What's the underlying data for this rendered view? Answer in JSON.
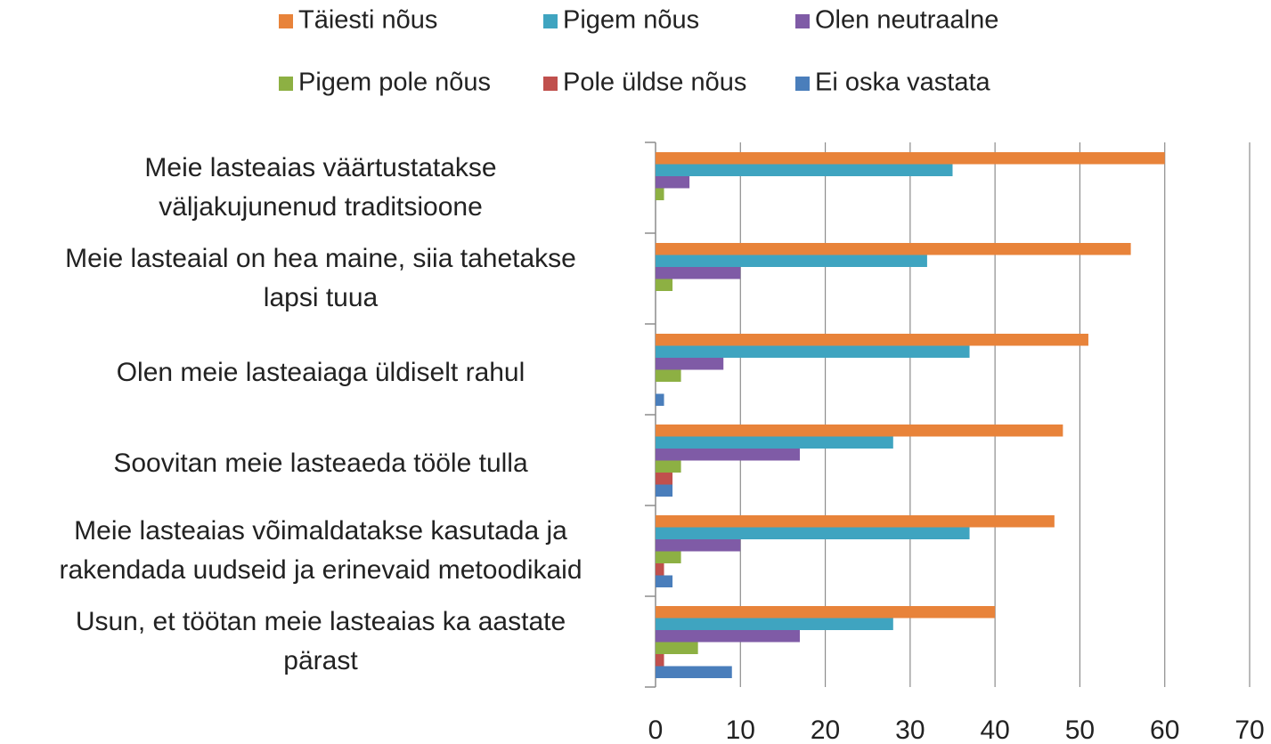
{
  "chart_data": {
    "type": "bar",
    "orientation": "horizontal",
    "categories": [
      "Meie lasteaias väärtustatakse\nväljakujunenud traditsioone",
      "Meie lasteaial on hea maine, siia tahetakse\nlapsi tuua",
      "Olen meie lasteaiaga üldiselt rahul",
      "Soovitan meie lasteaeda tööle tulla",
      "Meie lasteaias võimaldatakse kasutada ja\nrakendada uudseid ja erinevaid metoodikaid",
      "Usun, et töötan meie lasteaias ka aastate\npärast"
    ],
    "series": [
      {
        "name": "Täiesti nõus",
        "color": "#e8833a",
        "values": [
          60,
          56,
          51,
          48,
          47,
          40
        ]
      },
      {
        "name": "Pigem nõus",
        "color": "#3fa4c0",
        "values": [
          35,
          32,
          37,
          28,
          37,
          28
        ]
      },
      {
        "name": "Olen neutraalne",
        "color": "#7f5ba6",
        "values": [
          4,
          10,
          8,
          17,
          10,
          17
        ]
      },
      {
        "name": "Pigem pole nõus",
        "color": "#8db043",
        "values": [
          1,
          2,
          3,
          3,
          3,
          5
        ]
      },
      {
        "name": "Pole üldse nõus",
        "color": "#c0504d",
        "values": [
          0,
          0,
          0,
          2,
          1,
          1
        ]
      },
      {
        "name": "Ei oska vastata",
        "color": "#4a7ebb",
        "values": [
          0,
          0,
          1,
          2,
          2,
          9
        ]
      }
    ],
    "xlim": [
      0,
      70
    ],
    "xticks": [
      0,
      10,
      20,
      30,
      40,
      50,
      60,
      70
    ],
    "grid": true,
    "legend": "top"
  }
}
